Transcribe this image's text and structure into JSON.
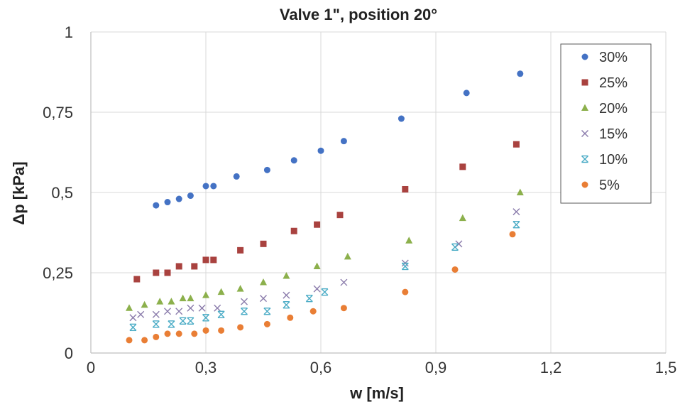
{
  "chart_data": {
    "type": "scatter",
    "title": "Valve 1\", position 20°",
    "xlabel": "w [m/s]",
    "ylabel": "Δp [kPa]",
    "xlim": [
      0,
      1.5
    ],
    "ylim": [
      0,
      1
    ],
    "x_ticks": [
      "0",
      "0,3",
      "0,6",
      "0,9",
      "1,2",
      "1,5"
    ],
    "y_ticks": [
      "0",
      "0,25",
      "0,5",
      "0,75",
      "1"
    ],
    "grid": true,
    "legend_position": "top-right",
    "series": [
      {
        "name": "30%",
        "marker": "circle",
        "color": "#4472c4",
        "points": [
          [
            0.17,
            0.46
          ],
          [
            0.2,
            0.47
          ],
          [
            0.23,
            0.48
          ],
          [
            0.26,
            0.49
          ],
          [
            0.3,
            0.52
          ],
          [
            0.32,
            0.52
          ],
          [
            0.38,
            0.55
          ],
          [
            0.46,
            0.57
          ],
          [
            0.53,
            0.6
          ],
          [
            0.6,
            0.63
          ],
          [
            0.66,
            0.66
          ],
          [
            0.81,
            0.73
          ],
          [
            0.98,
            0.81
          ],
          [
            1.12,
            0.87
          ]
        ]
      },
      {
        "name": "25%",
        "marker": "square",
        "color": "#a9423f",
        "points": [
          [
            0.12,
            0.23
          ],
          [
            0.17,
            0.25
          ],
          [
            0.2,
            0.25
          ],
          [
            0.23,
            0.27
          ],
          [
            0.27,
            0.27
          ],
          [
            0.3,
            0.29
          ],
          [
            0.32,
            0.29
          ],
          [
            0.39,
            0.32
          ],
          [
            0.45,
            0.34
          ],
          [
            0.53,
            0.38
          ],
          [
            0.59,
            0.4
          ],
          [
            0.65,
            0.43
          ],
          [
            0.82,
            0.51
          ],
          [
            0.97,
            0.58
          ],
          [
            1.11,
            0.65
          ]
        ]
      },
      {
        "name": "20%",
        "marker": "triangle",
        "color": "#8cb04c",
        "points": [
          [
            0.1,
            0.14
          ],
          [
            0.14,
            0.15
          ],
          [
            0.18,
            0.16
          ],
          [
            0.21,
            0.16
          ],
          [
            0.24,
            0.17
          ],
          [
            0.26,
            0.17
          ],
          [
            0.3,
            0.18
          ],
          [
            0.34,
            0.19
          ],
          [
            0.39,
            0.2
          ],
          [
            0.45,
            0.22
          ],
          [
            0.51,
            0.24
          ],
          [
            0.59,
            0.27
          ],
          [
            0.67,
            0.3
          ],
          [
            0.83,
            0.35
          ],
          [
            0.97,
            0.42
          ],
          [
            1.12,
            0.5
          ]
        ]
      },
      {
        "name": "15%",
        "marker": "x",
        "color": "#8a7bab",
        "points": [
          [
            0.11,
            0.11
          ],
          [
            0.13,
            0.12
          ],
          [
            0.17,
            0.12
          ],
          [
            0.2,
            0.13
          ],
          [
            0.23,
            0.13
          ],
          [
            0.26,
            0.14
          ],
          [
            0.29,
            0.14
          ],
          [
            0.33,
            0.14
          ],
          [
            0.4,
            0.16
          ],
          [
            0.45,
            0.17
          ],
          [
            0.51,
            0.18
          ],
          [
            0.59,
            0.2
          ],
          [
            0.66,
            0.22
          ],
          [
            0.82,
            0.28
          ],
          [
            0.96,
            0.34
          ],
          [
            1.11,
            0.44
          ]
        ]
      },
      {
        "name": "10%",
        "marker": "star",
        "color": "#4bacc6",
        "points": [
          [
            0.11,
            0.08
          ],
          [
            0.17,
            0.09
          ],
          [
            0.21,
            0.09
          ],
          [
            0.24,
            0.1
          ],
          [
            0.26,
            0.1
          ],
          [
            0.3,
            0.11
          ],
          [
            0.34,
            0.12
          ],
          [
            0.4,
            0.13
          ],
          [
            0.46,
            0.13
          ],
          [
            0.51,
            0.15
          ],
          [
            0.57,
            0.17
          ],
          [
            0.61,
            0.19
          ],
          [
            0.82,
            0.27
          ],
          [
            0.95,
            0.33
          ],
          [
            1.11,
            0.4
          ]
        ]
      },
      {
        "name": "5%",
        "marker": "circle",
        "color": "#e97e35",
        "points": [
          [
            0.1,
            0.04
          ],
          [
            0.14,
            0.04
          ],
          [
            0.17,
            0.05
          ],
          [
            0.2,
            0.06
          ],
          [
            0.23,
            0.06
          ],
          [
            0.27,
            0.06
          ],
          [
            0.3,
            0.07
          ],
          [
            0.34,
            0.07
          ],
          [
            0.39,
            0.08
          ],
          [
            0.46,
            0.09
          ],
          [
            0.52,
            0.11
          ],
          [
            0.58,
            0.13
          ],
          [
            0.66,
            0.14
          ],
          [
            0.82,
            0.19
          ],
          [
            0.95,
            0.26
          ],
          [
            1.1,
            0.37
          ]
        ]
      }
    ]
  }
}
